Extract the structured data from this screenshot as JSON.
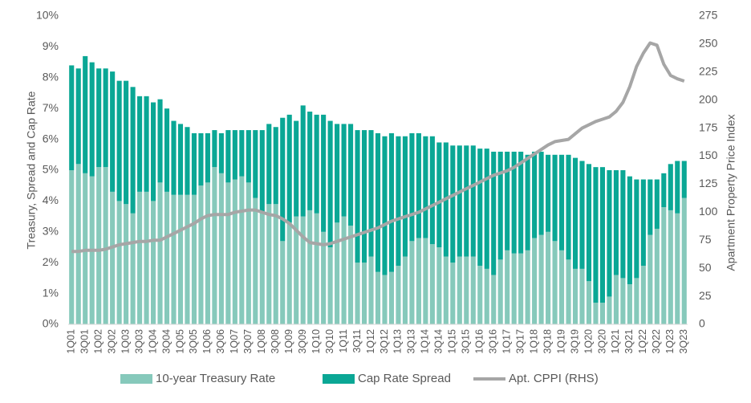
{
  "chart_data": {
    "type": "bar",
    "stacked": true,
    "y_label": "Treasury, Spread and Cap Rate",
    "y2_label": "Apartment Property Price Index",
    "categories": [
      "1Q01",
      null,
      "3Q01",
      null,
      "1Q02",
      null,
      "3Q02",
      null,
      "1Q03",
      null,
      "3Q03",
      null,
      "1Q04",
      null,
      "3Q04",
      null,
      "1Q05",
      null,
      "3Q05",
      null,
      "1Q06",
      null,
      "3Q06",
      null,
      "1Q07",
      null,
      "3Q07",
      null,
      "1Q08",
      null,
      "3Q08",
      null,
      "1Q09",
      null,
      "3Q09",
      null,
      "1Q10",
      null,
      "3Q10",
      null,
      "1Q11",
      null,
      "3Q11",
      null,
      "1Q12",
      null,
      "3Q12",
      null,
      "1Q13",
      null,
      "3Q13",
      null,
      "1Q14",
      null,
      "3Q14",
      null,
      "1Q15",
      null,
      "3Q15",
      null,
      "1Q16",
      null,
      "3Q16",
      null,
      "1Q17",
      null,
      "3Q17",
      null,
      "1Q18",
      null,
      "3Q18",
      null,
      "1Q19",
      null,
      "3Q19",
      null,
      "1Q20",
      null,
      "3Q20",
      null,
      "1Q21",
      null,
      "3Q21",
      null,
      "1Q22",
      null,
      "3Q22",
      null,
      "1Q23",
      null,
      "3Q23"
    ],
    "series": [
      {
        "name": "10-year Treasury Rate",
        "color": "#86c9bb",
        "values": [
          5.0,
          5.2,
          4.9,
          4.8,
          5.1,
          5.1,
          4.3,
          4.0,
          3.9,
          3.6,
          4.3,
          4.3,
          4.0,
          4.6,
          4.3,
          4.2,
          4.2,
          4.2,
          4.2,
          4.5,
          4.6,
          5.1,
          4.9,
          4.6,
          4.7,
          4.8,
          4.6,
          4.1,
          3.6,
          3.9,
          3.9,
          2.7,
          3.3,
          3.5,
          3.5,
          3.7,
          3.6,
          3.0,
          2.5,
          3.3,
          3.5,
          3.2,
          2.0,
          2.0,
          2.2,
          1.7,
          1.6,
          1.7,
          1.9,
          2.2,
          2.7,
          2.8,
          2.8,
          2.6,
          2.5,
          2.2,
          2.0,
          2.2,
          2.2,
          2.2,
          1.9,
          1.8,
          1.6,
          2.1,
          2.4,
          2.3,
          2.3,
          2.4,
          2.8,
          2.9,
          3.0,
          2.7,
          2.4,
          2.1,
          1.8,
          1.8,
          1.4,
          0.7,
          0.7,
          0.9,
          1.6,
          1.5,
          1.3,
          1.5,
          1.9,
          2.9,
          3.1,
          3.8,
          3.7,
          3.6,
          4.1
        ]
      },
      {
        "name": "Cap Rate Spread",
        "color": "#0aa795",
        "values": [
          3.4,
          3.1,
          3.8,
          3.7,
          3.2,
          3.2,
          3.9,
          3.9,
          4.0,
          4.1,
          3.1,
          3.1,
          3.2,
          2.7,
          2.7,
          2.4,
          2.3,
          2.2,
          2.0,
          1.7,
          1.6,
          1.2,
          1.3,
          1.7,
          1.6,
          1.5,
          1.7,
          2.2,
          2.7,
          2.6,
          2.5,
          4.0,
          3.5,
          3.1,
          3.6,
          3.2,
          3.2,
          3.8,
          4.1,
          3.2,
          3.0,
          3.3,
          4.3,
          4.3,
          4.1,
          4.5,
          4.5,
          4.5,
          4.2,
          3.9,
          3.5,
          3.4,
          3.3,
          3.5,
          3.4,
          3.7,
          3.8,
          3.6,
          3.6,
          3.6,
          3.8,
          3.9,
          4.0,
          3.5,
          3.2,
          3.3,
          3.3,
          3.1,
          2.8,
          2.7,
          2.5,
          2.8,
          3.1,
          3.4,
          3.6,
          3.5,
          3.8,
          4.4,
          4.4,
          4.1,
          3.4,
          3.5,
          3.5,
          3.2,
          2.8,
          1.8,
          1.6,
          1.1,
          1.5,
          1.7,
          1.2
        ]
      },
      {
        "name": "Apt. CPPI (RHS)",
        "color": "#a6a6a6",
        "type": "line",
        "axis": "y2",
        "values": [
          65,
          65,
          66,
          66,
          66,
          67,
          69,
          71,
          72,
          73,
          74,
          74,
          75,
          75,
          78,
          81,
          84,
          87,
          90,
          94,
          97,
          98,
          98,
          98,
          100,
          101,
          102,
          102,
          100,
          98,
          97,
          94,
          90,
          84,
          78,
          73,
          72,
          71,
          72,
          74,
          76,
          78,
          80,
          82,
          84,
          86,
          89,
          92,
          94,
          96,
          98,
          100,
          103,
          106,
          109,
          112,
          115,
          118,
          121,
          124,
          127,
          130,
          133,
          135,
          137,
          140,
          144,
          148,
          152,
          156,
          160,
          163,
          164,
          165,
          170,
          175,
          178,
          181,
          183,
          185,
          190,
          198,
          212,
          230,
          242,
          251,
          249,
          232,
          222,
          219,
          217
        ]
      }
    ],
    "ylim": [
      0,
      10
    ],
    "yticks": [
      {
        "value": 0,
        "label": "0%"
      },
      {
        "value": 1,
        "label": "1%"
      },
      {
        "value": 2,
        "label": "2%"
      },
      {
        "value": 3,
        "label": "3%"
      },
      {
        "value": 4,
        "label": "4%"
      },
      {
        "value": 5,
        "label": "5%"
      },
      {
        "value": 6,
        "label": "6%"
      },
      {
        "value": 7,
        "label": "7%"
      },
      {
        "value": 8,
        "label": "8%"
      },
      {
        "value": 9,
        "label": "9%"
      },
      {
        "value": 10,
        "label": "10%"
      }
    ],
    "y2lim": [
      0,
      275
    ],
    "y2ticks": [
      0,
      25,
      50,
      75,
      100,
      125,
      150,
      175,
      200,
      225,
      250,
      275
    ],
    "legend": "bottom"
  }
}
